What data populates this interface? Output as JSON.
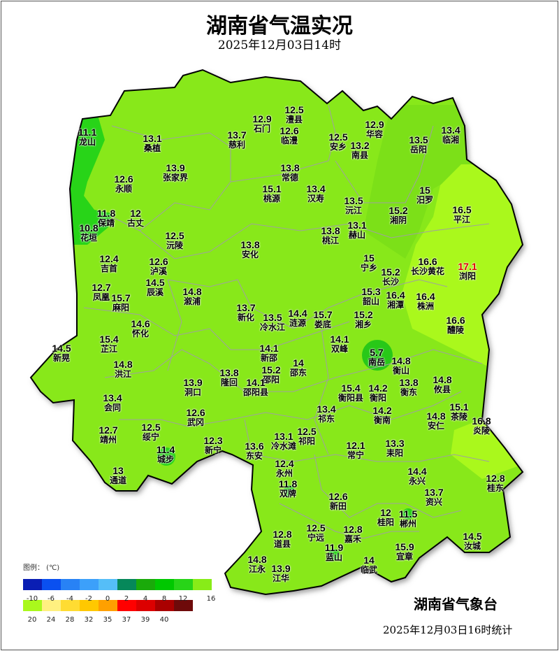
{
  "header": {
    "title": "湖南省气温实况",
    "subtitle": "2025年12月03日14时"
  },
  "stations": [
    {
      "name": "龙山",
      "value": "11.1"
    },
    {
      "name": "桑植",
      "value": "13.1"
    },
    {
      "name": "慈利",
      "value": "13.7"
    },
    {
      "name": "石门",
      "value": "12.9"
    },
    {
      "name": "澧县",
      "value": "12.5"
    },
    {
      "name": "临澧",
      "value": "12.6"
    },
    {
      "name": "安乡",
      "value": "12.5"
    },
    {
      "name": "南县",
      "value": "13.2"
    },
    {
      "name": "华容",
      "value": "12.9"
    },
    {
      "name": "岳阳",
      "value": "13.5"
    },
    {
      "name": "临湘",
      "value": "13.4"
    },
    {
      "name": "张家界",
      "value": "13.9"
    },
    {
      "name": "永顺",
      "value": "12.6"
    },
    {
      "name": "常德",
      "value": "13.8"
    },
    {
      "name": "桃源",
      "value": "15.1"
    },
    {
      "name": "汉寿",
      "value": "13.4"
    },
    {
      "name": "沅江",
      "value": "13.5"
    },
    {
      "name": "汨罗",
      "value": "15"
    },
    {
      "name": "湘阴",
      "value": "15.2"
    },
    {
      "name": "平江",
      "value": "16.5"
    },
    {
      "name": "保靖",
      "value": "11.8"
    },
    {
      "name": "古丈",
      "value": "12"
    },
    {
      "name": "花垣",
      "value": "10.8"
    },
    {
      "name": "沅陵",
      "value": "12.5"
    },
    {
      "name": "桃江",
      "value": "13.8"
    },
    {
      "name": "赫山",
      "value": "13.1"
    },
    {
      "name": "安化",
      "value": "13.8"
    },
    {
      "name": "吉首",
      "value": "12.4"
    },
    {
      "name": "泸溪",
      "value": "12.6"
    },
    {
      "name": "宁乡",
      "value": "15"
    },
    {
      "name": "长沙黄花",
      "value": "16.6"
    },
    {
      "name": "浏阳",
      "value": "17.1"
    },
    {
      "name": "长沙",
      "value": "15.2"
    },
    {
      "name": "辰溪",
      "value": "14.5"
    },
    {
      "name": "凤凰",
      "value": "12.7"
    },
    {
      "name": "麻阳",
      "value": "15.7"
    },
    {
      "name": "溆浦",
      "value": "14.8"
    },
    {
      "name": "韶山",
      "value": "15.3"
    },
    {
      "name": "湘潭",
      "value": "16.4"
    },
    {
      "name": "株洲",
      "value": "16.4"
    },
    {
      "name": "新化",
      "value": "13.7"
    },
    {
      "name": "冷水江",
      "value": "13.5"
    },
    {
      "name": "涟源",
      "value": "14.4"
    },
    {
      "name": "湘乡",
      "value": "15.2"
    },
    {
      "name": "娄底",
      "value": "15.7"
    },
    {
      "name": "醴陵",
      "value": "16.6"
    },
    {
      "name": "怀化",
      "value": "14.6"
    },
    {
      "name": "双峰",
      "value": "14.1"
    },
    {
      "name": "芷江",
      "value": "15.4"
    },
    {
      "name": "新晃",
      "value": "14.5"
    },
    {
      "name": "南岳",
      "value": "5.7"
    },
    {
      "name": "衡山",
      "value": "14.8"
    },
    {
      "name": "新邵",
      "value": "14.1"
    },
    {
      "name": "邵东",
      "value": "14"
    },
    {
      "name": "邵阳",
      "value": "15.2"
    },
    {
      "name": "洪江",
      "value": "14.8"
    },
    {
      "name": "隆回",
      "value": "13.8"
    },
    {
      "name": "衡东",
      "value": "13.8"
    },
    {
      "name": "攸县",
      "value": "14.8"
    },
    {
      "name": "洞口",
      "value": "13.9"
    },
    {
      "name": "邵阳县",
      "value": "14.1"
    },
    {
      "name": "衡阳县",
      "value": "15.4"
    },
    {
      "name": "衡阳",
      "value": "14.2"
    },
    {
      "name": "会同",
      "value": "13.4"
    },
    {
      "name": "祁东",
      "value": "13.4"
    },
    {
      "name": "衡南",
      "value": "14.2"
    },
    {
      "name": "武冈",
      "value": "12.6"
    },
    {
      "name": "安仁",
      "value": "14.8"
    },
    {
      "name": "茶陵",
      "value": "15.1"
    },
    {
      "name": "靖州",
      "value": "12.7"
    },
    {
      "name": "绥宁",
      "value": "12.5"
    },
    {
      "name": "祁阳",
      "value": "12.5"
    },
    {
      "name": "冷水滩",
      "value": "13.1"
    },
    {
      "name": "炎陵",
      "value": "16.8"
    },
    {
      "name": "城步",
      "value": "11.4"
    },
    {
      "name": "新宁",
      "value": "12.3"
    },
    {
      "name": "东安",
      "value": "13.6"
    },
    {
      "name": "常宁",
      "value": "12.1"
    },
    {
      "name": "耒阳",
      "value": "13.3"
    },
    {
      "name": "永州",
      "value": "12.4"
    },
    {
      "name": "通道",
      "value": "13"
    },
    {
      "name": "永兴",
      "value": "14.4"
    },
    {
      "name": "桂东",
      "value": "12.8"
    },
    {
      "name": "资兴",
      "value": "13.7"
    },
    {
      "name": "双牌",
      "value": "11.8"
    },
    {
      "name": "新田",
      "value": "12.6"
    },
    {
      "name": "桂阳",
      "value": "12"
    },
    {
      "name": "郴州",
      "value": "11.5"
    },
    {
      "name": "宁远",
      "value": "12.5"
    },
    {
      "name": "嘉禾",
      "value": "12.8"
    },
    {
      "name": "道县",
      "value": "12.8"
    },
    {
      "name": "汝城",
      "value": "14.5"
    },
    {
      "name": "蓝山",
      "value": "11.9"
    },
    {
      "name": "宜章",
      "value": "15.9"
    },
    {
      "name": "临武",
      "value": "14"
    },
    {
      "name": "江永",
      "value": "14.8"
    },
    {
      "name": "江华",
      "value": "13.9"
    }
  ],
  "highlight_color": "#e00000",
  "legend": {
    "title": "图例：  (℃)",
    "row1": {
      "colors": [
        "#0a1eb4",
        "#0a50f0",
        "#2882f5",
        "#3ca0fa",
        "#55bef8",
        "#06885a",
        "#1aaa0a",
        "#00c800",
        "#28d418",
        "#88ec18"
      ],
      "labels": [
        "-10",
        "-6",
        "-4",
        "-2",
        "0",
        "2",
        "4",
        "8",
        "12",
        "16"
      ]
    },
    "row2": {
      "colors": [
        "#aaf81c",
        "#fff080",
        "#ffdc32",
        "#ffc800",
        "#ffa000",
        "#ff0000",
        "#dc0000",
        "#aa0000",
        "#6e0a0a"
      ],
      "labels": [
        "20",
        "24",
        "28",
        "32",
        "35",
        "37",
        "39",
        "40"
      ]
    }
  },
  "footer": {
    "organization": "湖南省气象台",
    "stats_time": "2025年12月03日16时统计"
  }
}
